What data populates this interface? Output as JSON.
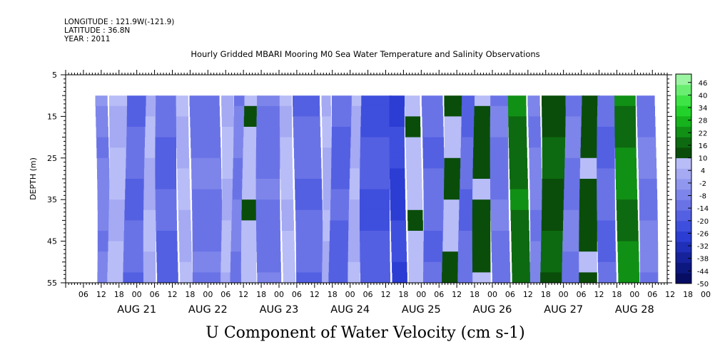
{
  "header": {
    "longitude": "LONGITUDE : 121.9W(-121.9)",
    "latitude": "LATITUDE : 36.8N",
    "year": "YEAR : 2011",
    "title": "Hourly Gridded MBARI Mooring M0 Sea Water Temperature and Salinity Observations"
  },
  "chart_data": {
    "type": "heatmap",
    "title": "U Component of Water Velocity (cm s-1)",
    "ylabel": "DEPTH (m)",
    "ylim": [
      5,
      55
    ],
    "y_inverted": true,
    "y_ticks": [
      "5",
      "15",
      "25",
      "35",
      "45",
      "55"
    ],
    "data_depth_range": [
      10,
      55
    ],
    "x_range_hours_label": "2011-08-20 00:00 to 2011-08-28 03:00",
    "x_hour_ticks": [
      "06",
      "12",
      "18",
      "00",
      "06",
      "12",
      "18",
      "00",
      "06",
      "12",
      "18",
      "00",
      "06",
      "12",
      "18",
      "00",
      "06",
      "12",
      "18",
      "00",
      "06",
      "12",
      "18",
      "00",
      "06",
      "12",
      "18",
      "00",
      "06",
      "12",
      "18",
      "00",
      "06",
      "12",
      "18",
      "00"
    ],
    "x_day_labels": [
      "AUG 21",
      "AUG 22",
      "AUG 23",
      "AUG 24",
      "AUG 25",
      "AUG 26",
      "AUG 27",
      "AUG 28"
    ],
    "data_start_hour": 10,
    "data_end_hour": 199,
    "colorbar": {
      "ticks": [
        "46",
        "40",
        "34",
        "28",
        "22",
        "16",
        "10",
        "4",
        "-2",
        "-8",
        "-14",
        "-20",
        "-26",
        "-32",
        "-38",
        "-44",
        "-50"
      ],
      "range": [
        -50,
        50
      ],
      "colors_high": [
        "#0a4d0a",
        "#0d6a10",
        "#119016",
        "#16b31c",
        "#22d22a",
        "#3ee446",
        "#6aee72",
        "#9cf5a2"
      ],
      "colors_low": [
        "#b8bdf7",
        "#a5aaf3",
        "#9097ee",
        "#7d85ea",
        "#6a73e6",
        "#5460e2",
        "#3f4fdd",
        "#2c3dd4",
        "#1f2fb8",
        "#15229a",
        "#0d1780",
        "#070d63"
      ]
    },
    "bands_approx": [
      {
        "start_hour": 10,
        "end_hour": 14,
        "value": -8
      },
      {
        "start_hour": 14,
        "end_hour": 20,
        "value": 6
      },
      {
        "start_hour": 20,
        "end_hour": 27,
        "value": -14
      },
      {
        "start_hour": 27,
        "end_hour": 31,
        "value": 5
      },
      {
        "start_hour": 31,
        "end_hour": 38,
        "value": -16
      },
      {
        "start_hour": 38,
        "end_hour": 42,
        "value": 4
      },
      {
        "start_hour": 42,
        "end_hour": 52,
        "value": -12
      },
      {
        "start_hour": 52,
        "end_hour": 56,
        "value": 6
      },
      {
        "start_hour": 56,
        "end_hour": 60,
        "value": -10
      },
      {
        "start_hour": 60,
        "end_hour": 65,
        "value": 8
      },
      {
        "start_hour": 65,
        "end_hour": 73,
        "value": -12
      },
      {
        "start_hour": 73,
        "end_hour": 77,
        "value": 7
      },
      {
        "start_hour": 77,
        "end_hour": 86,
        "value": -14
      },
      {
        "start_hour": 86,
        "end_hour": 89,
        "value": 4
      },
      {
        "start_hour": 89,
        "end_hour": 96,
        "value": -16
      },
      {
        "start_hour": 96,
        "end_hour": 100,
        "value": 4
      },
      {
        "start_hour": 100,
        "end_hour": 110,
        "value": -20
      },
      {
        "start_hour": 110,
        "end_hour": 115,
        "value": -26
      },
      {
        "start_hour": 115,
        "end_hour": 120,
        "value": 8
      },
      {
        "start_hour": 120,
        "end_hour": 127,
        "value": -14
      },
      {
        "start_hour": 127,
        "end_hour": 133,
        "value": 10
      },
      {
        "start_hour": 133,
        "end_hour": 138,
        "value": -14
      },
      {
        "start_hour": 138,
        "end_hour": 144,
        "value": 12
      },
      {
        "start_hour": 144,
        "end_hour": 150,
        "value": -12
      },
      {
        "start_hour": 150,
        "end_hour": 156,
        "value": 18
      },
      {
        "start_hour": 156,
        "end_hour": 160,
        "value": -8
      },
      {
        "start_hour": 160,
        "end_hour": 168,
        "value": 14
      },
      {
        "start_hour": 168,
        "end_hour": 174,
        "value": -10
      },
      {
        "start_hour": 174,
        "end_hour": 180,
        "value": 12
      },
      {
        "start_hour": 180,
        "end_hour": 186,
        "value": -14
      },
      {
        "start_hour": 186,
        "end_hour": 193,
        "value": 20
      },
      {
        "start_hour": 193,
        "end_hour": 199,
        "value": -10
      }
    ]
  }
}
